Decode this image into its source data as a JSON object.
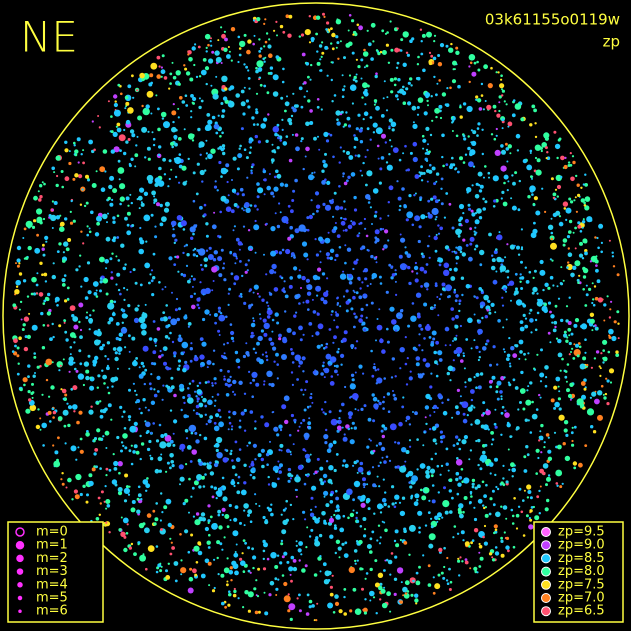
{
  "header": {
    "label": "NE",
    "image_id": "03k61155o0119w",
    "quantity": "zp"
  },
  "legend_magnitude": {
    "items": [
      "m=0",
      "m=1",
      "m=2",
      "m=3",
      "m=4",
      "m=5",
      "m=6"
    ]
  },
  "legend_zp": {
    "items": [
      {
        "label": "zp=9.5",
        "color": "#ff60ff"
      },
      {
        "label": "zp=9.0",
        "color": "#c040ff"
      },
      {
        "label": "zp=8.5",
        "color": "#20c8ff"
      },
      {
        "label": "zp=8.0",
        "color": "#30ffa0"
      },
      {
        "label": "zp=7.5",
        "color": "#ffe020"
      },
      {
        "label": "zp=7.0",
        "color": "#ff8020"
      },
      {
        "label": "zp=6.5",
        "color": "#ff5070"
      }
    ]
  }
}
